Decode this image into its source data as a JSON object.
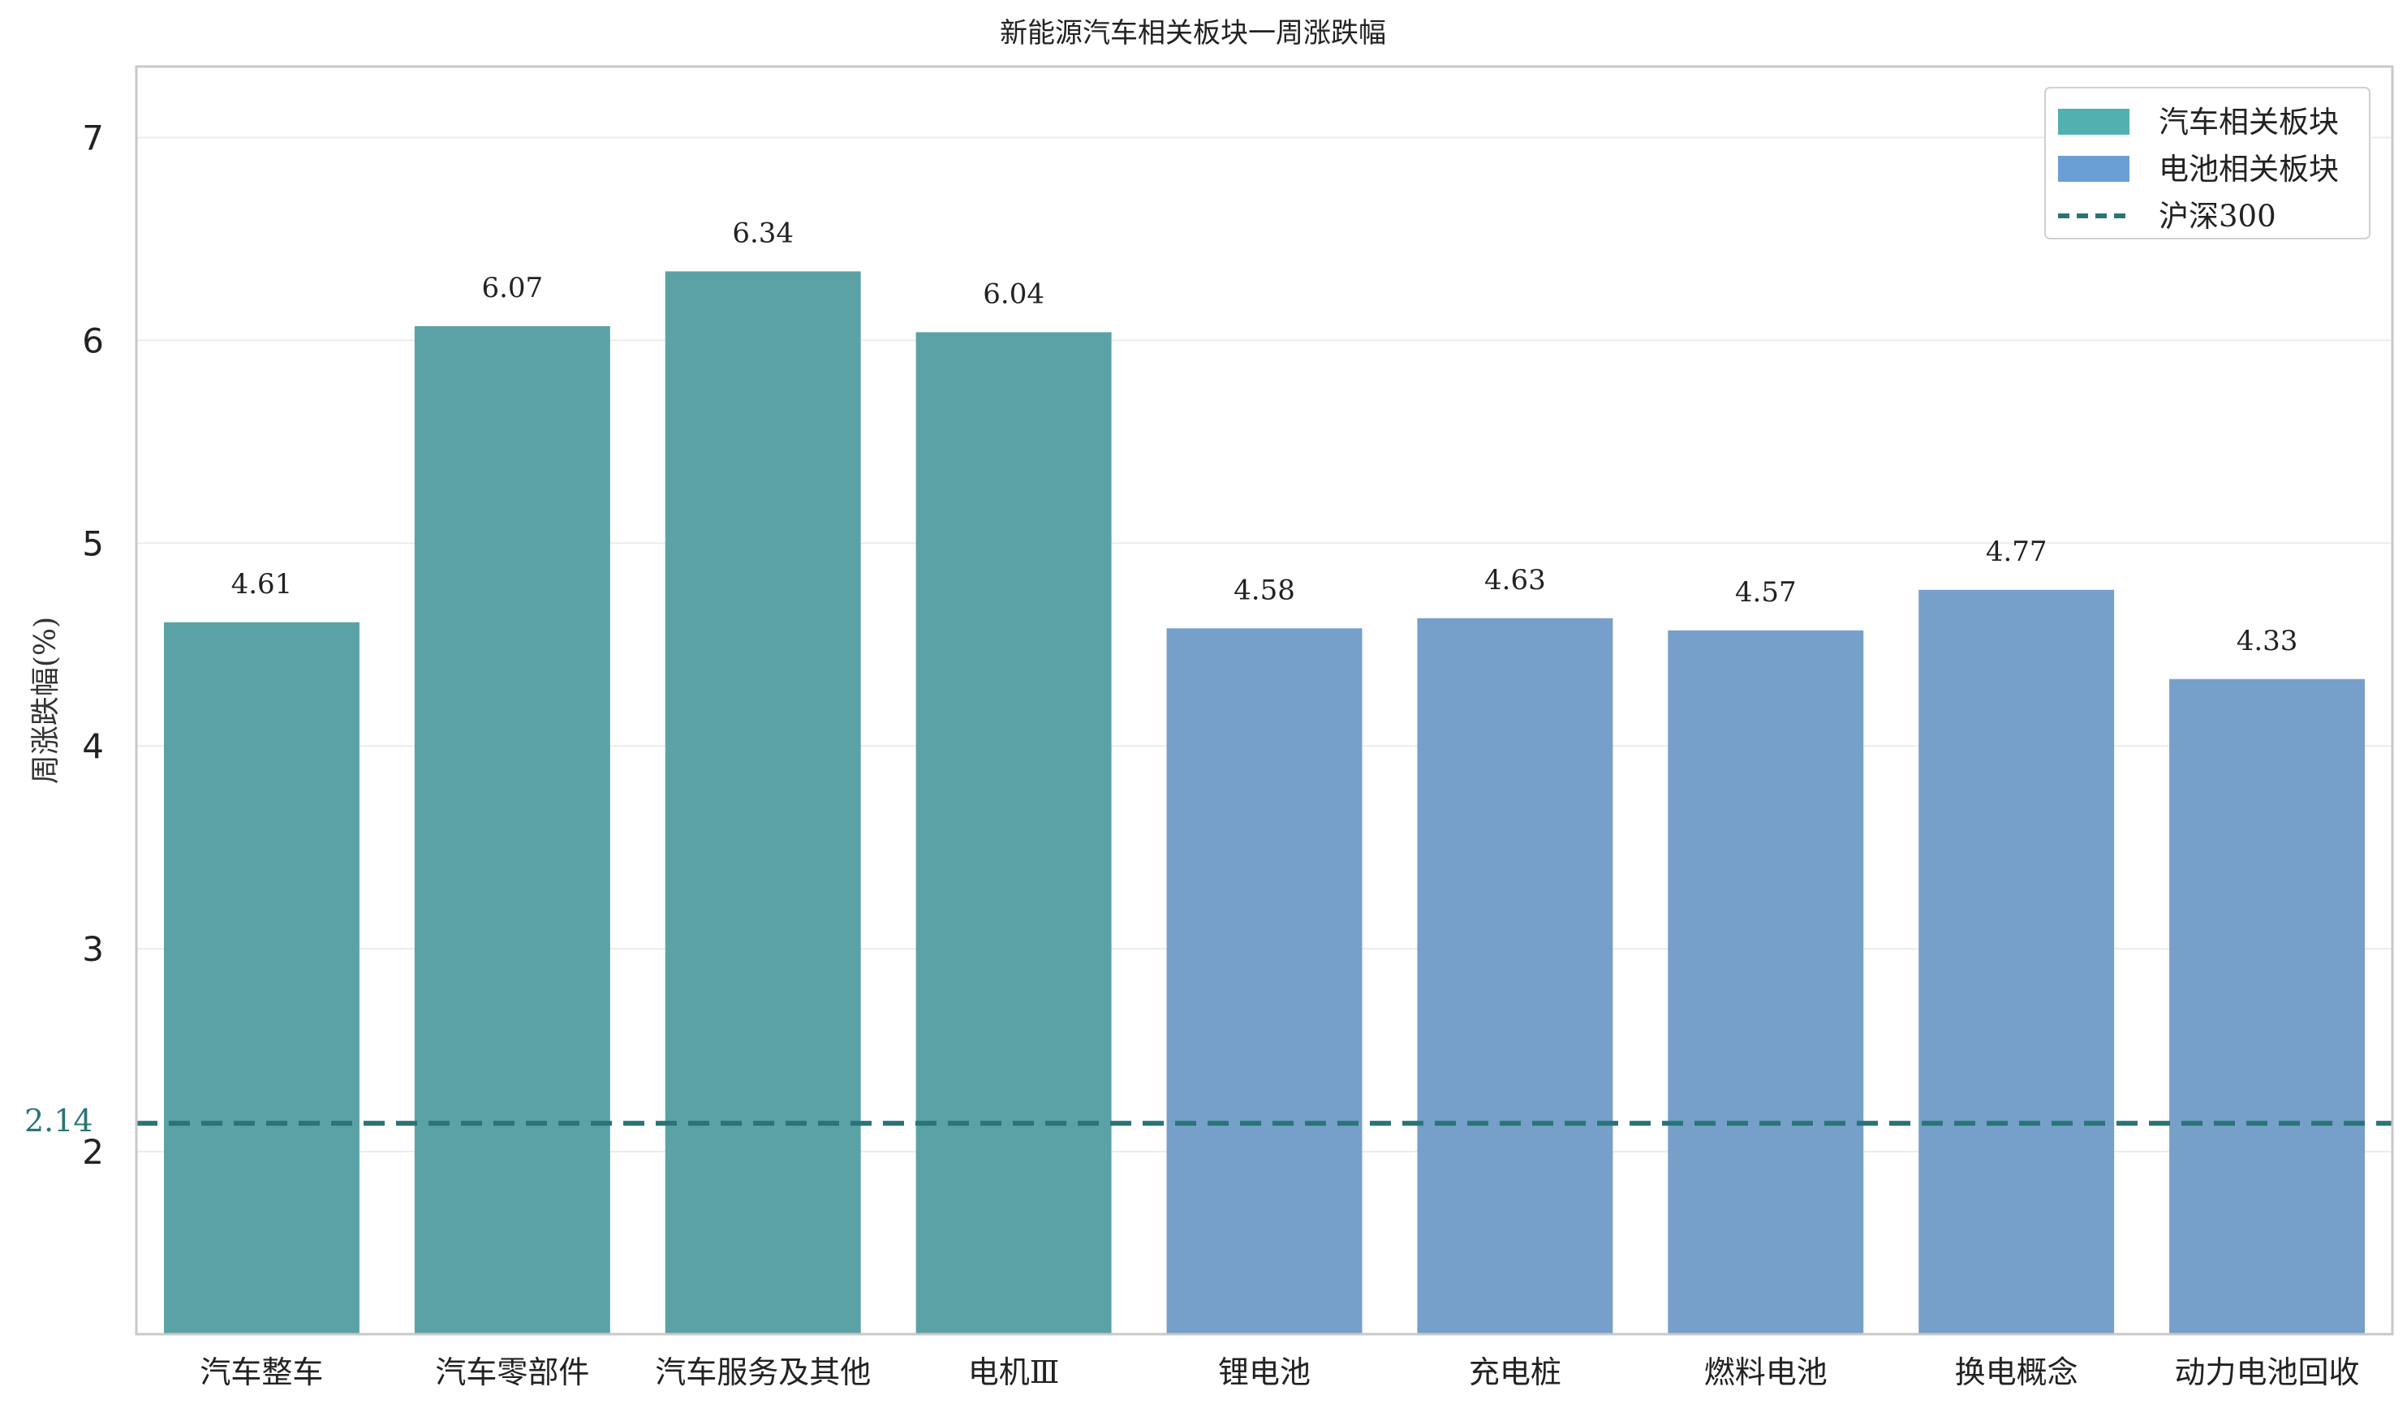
{
  "chart_data": {
    "type": "bar",
    "title": "新能源汽车相关板块一周涨跌幅",
    "xlabel": "",
    "ylabel": "周涨跌幅(%)",
    "ylim": [
      1.1,
      7.35
    ],
    "yticks": [
      "2",
      "3",
      "4",
      "5",
      "6",
      "7"
    ],
    "categories": [
      "汽车整车",
      "汽车零部件",
      "汽车服务及其他",
      "电机Ⅲ",
      "锂电池",
      "充电桩",
      "燃料电池",
      "换电概念",
      "动力电池回收"
    ],
    "values": [
      4.61,
      6.07,
      6.34,
      6.04,
      4.58,
      4.63,
      4.57,
      4.77,
      4.33
    ],
    "value_labels": [
      "4.61",
      "6.07",
      "6.34",
      "6.04",
      "4.58",
      "4.63",
      "4.57",
      "4.77",
      "4.33"
    ],
    "groups": [
      "汽车相关板块",
      "汽车相关板块",
      "汽车相关板块",
      "汽车相关板块",
      "电池相关板块",
      "电池相关板块",
      "电池相关板块",
      "电池相关板块",
      "电池相关板块"
    ],
    "reference_line": {
      "name": "沪深300",
      "value": 2.14,
      "label": "2.14",
      "color": "#2a7478",
      "style": "dashed"
    },
    "legend": {
      "placement": "top-right",
      "entries": [
        {
          "name": "汽车相关板块",
          "color": "#5aa2a5",
          "patch_color": "#52b0b0",
          "kind": "bar"
        },
        {
          "name": "电池相关板块",
          "color": "#769fc9",
          "patch_color": "#6a9fd6",
          "kind": "bar"
        },
        {
          "name": "沪深300",
          "color": "#2a7478",
          "kind": "line"
        }
      ]
    },
    "grid": true
  }
}
